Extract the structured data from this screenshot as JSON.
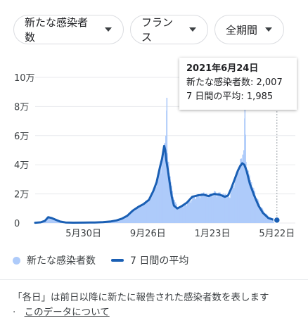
{
  "filters": {
    "metric": "新たな感染者数",
    "region": "フランス",
    "period": "全期間"
  },
  "tooltip": {
    "date": "2021年6月24日",
    "new_cases": "新たな感染者数: 2,007",
    "average": "7 日間の平均: 1,985"
  },
  "legend": {
    "bars": "新たな感染者数",
    "line": "7 日間の平均"
  },
  "footer": {
    "note": "「各日」は前日以降に新たに報告された感染者数を表します",
    "bullet": "·",
    "about_link": "このデータについて"
  },
  "colors": {
    "bars": "#aecbfa",
    "line": "#1a5fb4",
    "grid": "#e8eaed"
  },
  "chart_data": {
    "type": "bar",
    "y_ticks": [
      "0",
      "2万",
      "4万",
      "6万",
      "8万",
      "10万"
    ],
    "y_tick_values": [
      0,
      20000,
      40000,
      60000,
      80000,
      100000
    ],
    "ylim": [
      0,
      100000
    ],
    "x_ticks": [
      "5月30日",
      "9月26日",
      "1月23日",
      "5月22日"
    ],
    "x_tick_values": [
      89,
      208,
      327,
      446
    ],
    "x_range": [
      0,
      480
    ],
    "series": [
      {
        "name": "新たな感染者数",
        "kind": "bar",
        "points": [
          [
            0,
            300
          ],
          [
            10,
            600
          ],
          [
            18,
            1800
          ],
          [
            24,
            4500
          ],
          [
            28,
            4200
          ],
          [
            32,
            3600
          ],
          [
            38,
            2000
          ],
          [
            46,
            1000
          ],
          [
            56,
            400
          ],
          [
            70,
            250
          ],
          [
            90,
            300
          ],
          [
            110,
            400
          ],
          [
            125,
            600
          ],
          [
            140,
            1200
          ],
          [
            150,
            2000
          ],
          [
            160,
            3500
          ],
          [
            170,
            5500
          ],
          [
            180,
            9000
          ],
          [
            190,
            12000
          ],
          [
            200,
            14000
          ],
          [
            210,
            18000
          ],
          [
            218,
            24000
          ],
          [
            224,
            30000
          ],
          [
            230,
            40000
          ],
          [
            234,
            46000
          ],
          [
            236,
            52000
          ],
          [
            238,
            55000
          ],
          [
            240,
            60000
          ],
          [
            242,
            86000
          ],
          [
            243,
            48000
          ],
          [
            245,
            42000
          ],
          [
            248,
            32000
          ],
          [
            252,
            22000
          ],
          [
            256,
            16000
          ],
          [
            262,
            11000
          ],
          [
            270,
            12000
          ],
          [
            280,
            14000
          ],
          [
            290,
            18000
          ],
          [
            300,
            20000
          ],
          [
            310,
            21000
          ],
          [
            320,
            20000
          ],
          [
            330,
            22000
          ],
          [
            340,
            21000
          ],
          [
            350,
            20000
          ],
          [
            356,
            18000
          ],
          [
            362,
            25000
          ],
          [
            368,
            30000
          ],
          [
            374,
            38000
          ],
          [
            378,
            44000
          ],
          [
            382,
            47000
          ],
          [
            384,
            50000
          ],
          [
            386,
            80000
          ],
          [
            388,
            42000
          ],
          [
            392,
            36000
          ],
          [
            398,
            28000
          ],
          [
            404,
            22000
          ],
          [
            410,
            16000
          ],
          [
            418,
            10000
          ],
          [
            426,
            6000
          ],
          [
            434,
            3500
          ],
          [
            442,
            2200
          ],
          [
            446,
            2007
          ]
        ]
      },
      {
        "name": "7 日間の平均",
        "kind": "line",
        "points": [
          [
            0,
            200
          ],
          [
            10,
            500
          ],
          [
            18,
            1500
          ],
          [
            24,
            4000
          ],
          [
            30,
            3500
          ],
          [
            38,
            2200
          ],
          [
            46,
            1000
          ],
          [
            56,
            400
          ],
          [
            70,
            250
          ],
          [
            90,
            300
          ],
          [
            110,
            400
          ],
          [
            125,
            600
          ],
          [
            140,
            1100
          ],
          [
            150,
            1800
          ],
          [
            160,
            3000
          ],
          [
            170,
            5000
          ],
          [
            180,
            8500
          ],
          [
            190,
            11000
          ],
          [
            200,
            13000
          ],
          [
            210,
            16000
          ],
          [
            218,
            22000
          ],
          [
            224,
            28000
          ],
          [
            230,
            38000
          ],
          [
            234,
            44000
          ],
          [
            238,
            53000
          ],
          [
            240,
            50000
          ],
          [
            242,
            43000
          ],
          [
            245,
            36000
          ],
          [
            248,
            28000
          ],
          [
            252,
            18000
          ],
          [
            256,
            12000
          ],
          [
            262,
            10000
          ],
          [
            270,
            11500
          ],
          [
            280,
            14000
          ],
          [
            290,
            18000
          ],
          [
            300,
            19000
          ],
          [
            310,
            19500
          ],
          [
            320,
            18500
          ],
          [
            330,
            20000
          ],
          [
            340,
            19500
          ],
          [
            350,
            18000
          ],
          [
            356,
            19000
          ],
          [
            362,
            24000
          ],
          [
            368,
            30000
          ],
          [
            374,
            36000
          ],
          [
            378,
            39000
          ],
          [
            382,
            41000
          ],
          [
            386,
            40000
          ],
          [
            390,
            36000
          ],
          [
            396,
            27000
          ],
          [
            404,
            19000
          ],
          [
            412,
            12000
          ],
          [
            420,
            7000
          ],
          [
            430,
            3500
          ],
          [
            440,
            2200
          ],
          [
            446,
            1985
          ]
        ]
      }
    ]
  }
}
